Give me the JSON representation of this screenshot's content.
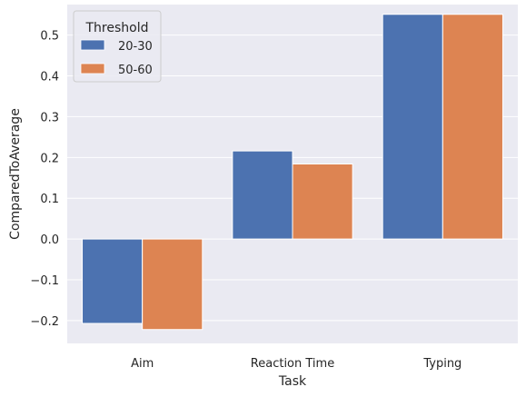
{
  "chart_data": {
    "type": "bar",
    "categories": [
      "Aim",
      "Reaction Time",
      "Typing"
    ],
    "series": [
      {
        "name": "20-30",
        "values": [
          -0.207,
          0.216,
          0.551
        ],
        "color": "#4c72b0"
      },
      {
        "name": "50-60",
        "values": [
          -0.222,
          0.184,
          0.551
        ],
        "color": "#dd8452"
      }
    ],
    "xlabel": "Task",
    "ylabel": "ComparedToAverage",
    "ylim": [
      -0.256,
      0.575
    ],
    "yticks": [
      -0.2,
      -0.1,
      0.0,
      0.1,
      0.2,
      0.3,
      0.4,
      0.5
    ],
    "ytick_labels": [
      "−0.2",
      "−0.1",
      "0.0",
      "0.1",
      "0.2",
      "0.3",
      "0.4",
      "0.5"
    ],
    "grid": true,
    "background_color": "#eaeaf2",
    "legend": {
      "title": "Threshold",
      "placement": "top-left"
    }
  }
}
